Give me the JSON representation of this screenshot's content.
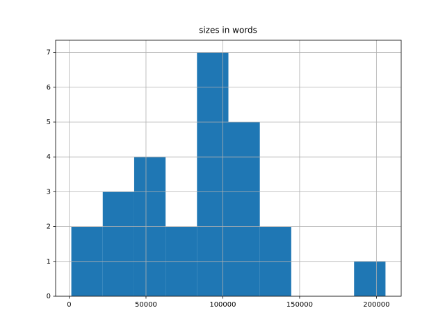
{
  "chart_data": {
    "type": "histogram",
    "title": "sizes in words",
    "bins": [
      1400,
      21850,
      42300,
      62750,
      83200,
      103650,
      124100,
      144550,
      165000,
      185450,
      205900
    ],
    "counts": [
      2,
      3,
      4,
      2,
      7,
      5,
      2,
      0,
      0,
      1
    ],
    "color": "#1f77b4",
    "xlim": [
      -8825,
      216125
    ],
    "xticks": [
      0,
      50000,
      100000,
      150000,
      200000
    ],
    "ylim": [
      0,
      7.35
    ],
    "yticks": [
      0,
      1,
      2,
      3,
      4,
      5,
      6,
      7
    ],
    "grid": true
  }
}
